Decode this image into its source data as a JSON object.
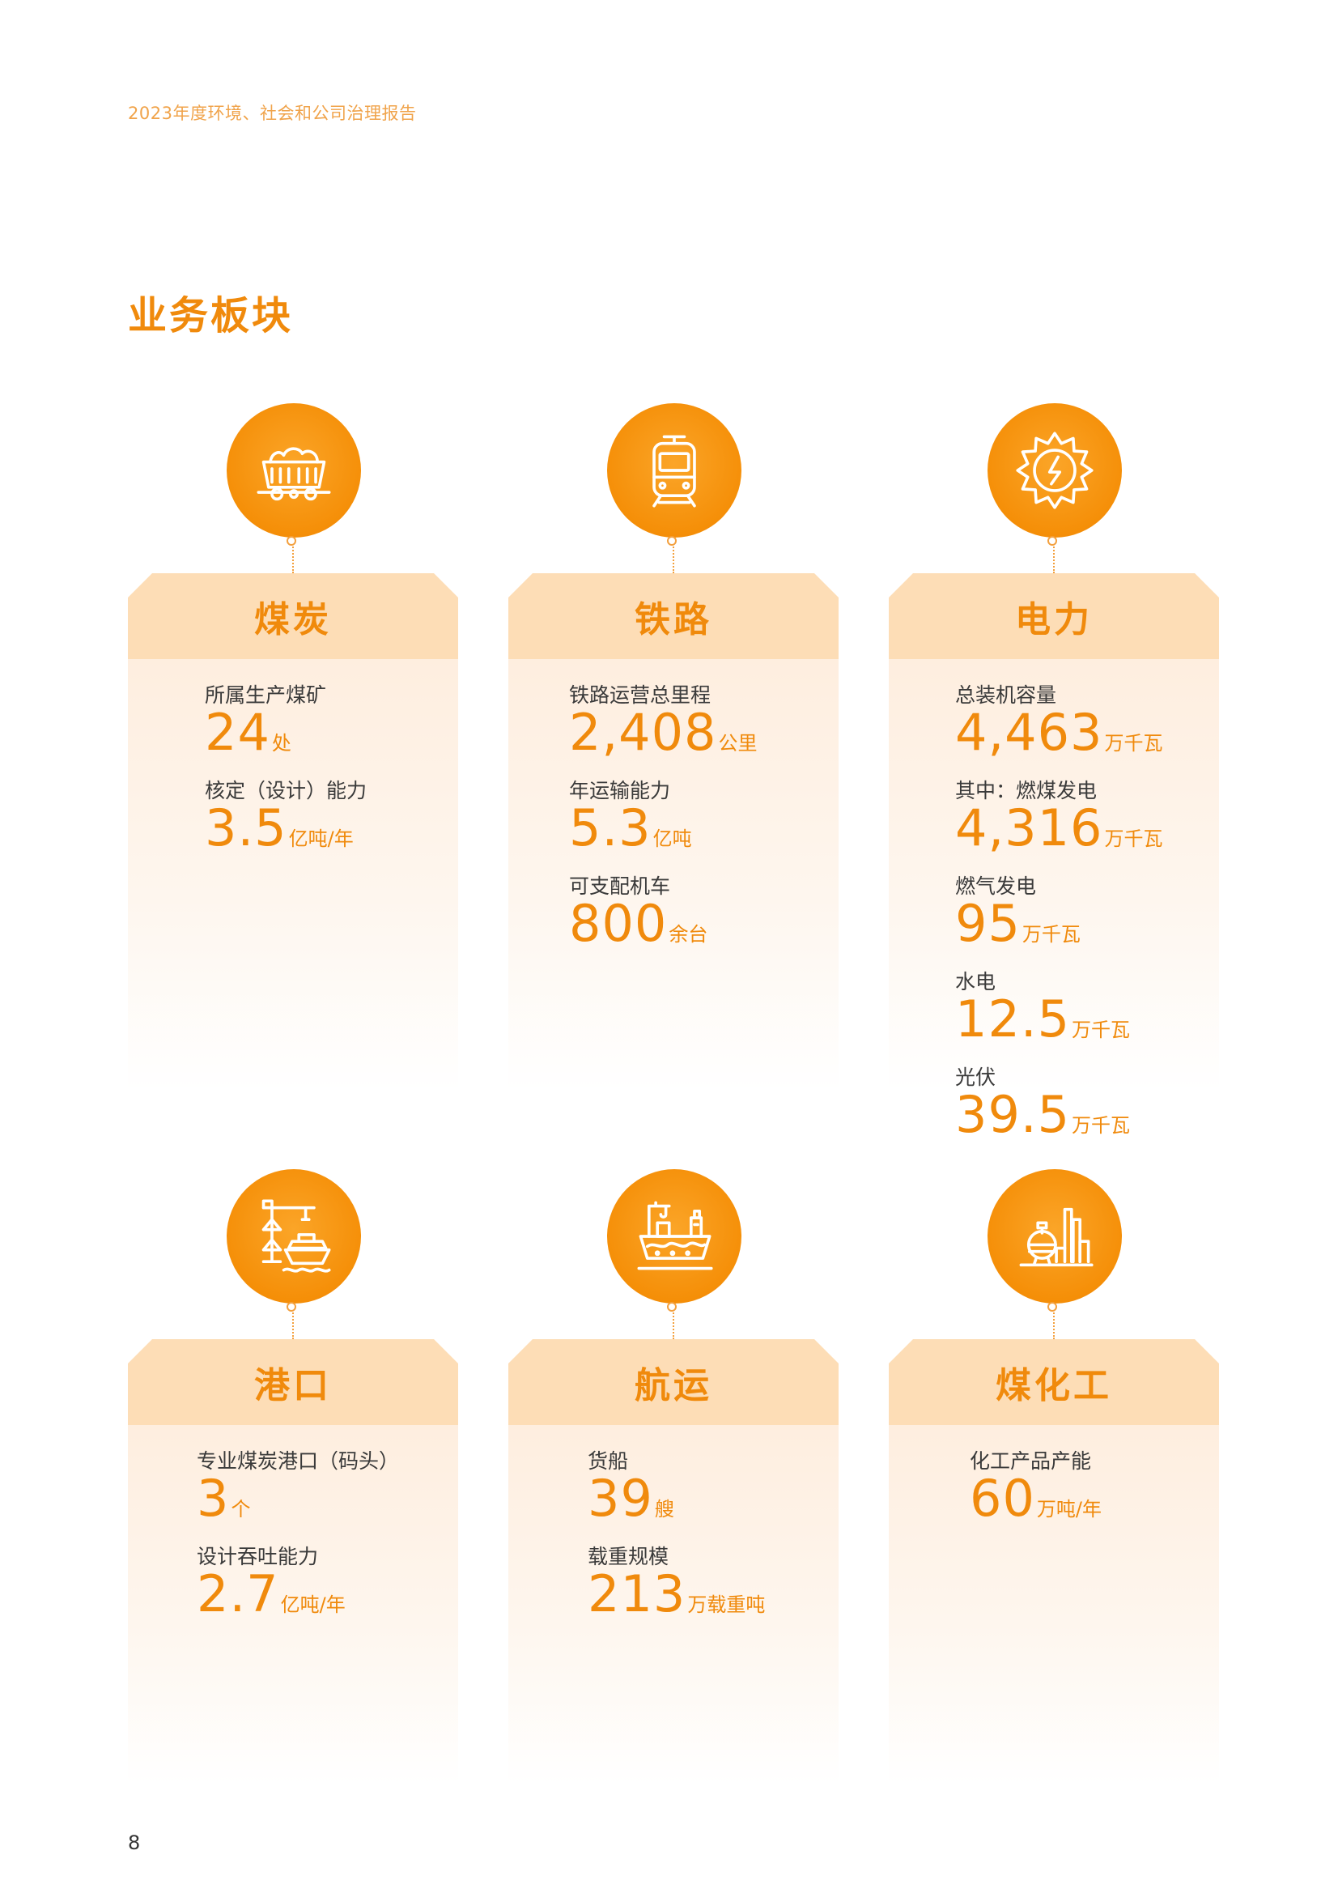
{
  "header": "2023年度环境、社会和公司治理报告",
  "section_title": "业务板块",
  "page_number": "8",
  "colors": {
    "accent": "#F08A0C",
    "card_head": "#FDDDB6",
    "icon_circle": "#F58F08"
  },
  "segments": [
    {
      "name": "煤炭",
      "icon": "mine-cart-icon",
      "metrics": [
        {
          "label": "所属生产煤矿",
          "value": "24",
          "unit": "处"
        },
        {
          "label": "核定（设计）能力",
          "value": "3.5",
          "unit": "亿吨/年"
        }
      ]
    },
    {
      "name": "铁路",
      "icon": "train-icon",
      "metrics": [
        {
          "label": "铁路运营总里程",
          "value": "2,408",
          "unit": "公里"
        },
        {
          "label": "年运输能力",
          "value": "5.3",
          "unit": "亿吨"
        },
        {
          "label": "可支配机车",
          "value": "800",
          "unit": "余台"
        }
      ]
    },
    {
      "name": "电力",
      "icon": "power-sun-icon",
      "metrics": [
        {
          "label": "总装机容量",
          "value": "4,463",
          "unit": "万千瓦"
        },
        {
          "label": "其中：燃煤发电",
          "value": "4,316",
          "unit": "万千瓦"
        },
        {
          "label": "燃气发电",
          "value": "95",
          "unit": "万千瓦"
        },
        {
          "label": "水电",
          "value": "12.5",
          "unit": "万千瓦"
        },
        {
          "label": "光伏",
          "value": "39.5",
          "unit": "万千瓦"
        }
      ]
    },
    {
      "name": "港口",
      "icon": "port-crane-icon",
      "metrics": [
        {
          "label": "专业煤炭港口（码头）",
          "value": "3",
          "unit": "个"
        },
        {
          "label": "设计吞吐能力",
          "value": "2.7",
          "unit": "亿吨/年"
        }
      ]
    },
    {
      "name": "航运",
      "icon": "cargo-ship-icon",
      "metrics": [
        {
          "label": "货船",
          "value": "39",
          "unit": "艘"
        },
        {
          "label": "载重规模",
          "value": "213",
          "unit": "万载重吨"
        }
      ]
    },
    {
      "name": "煤化工",
      "icon": "chemical-plant-icon",
      "metrics": [
        {
          "label": "化工产品产能",
          "value": "60",
          "unit": "万吨/年"
        }
      ]
    }
  ]
}
